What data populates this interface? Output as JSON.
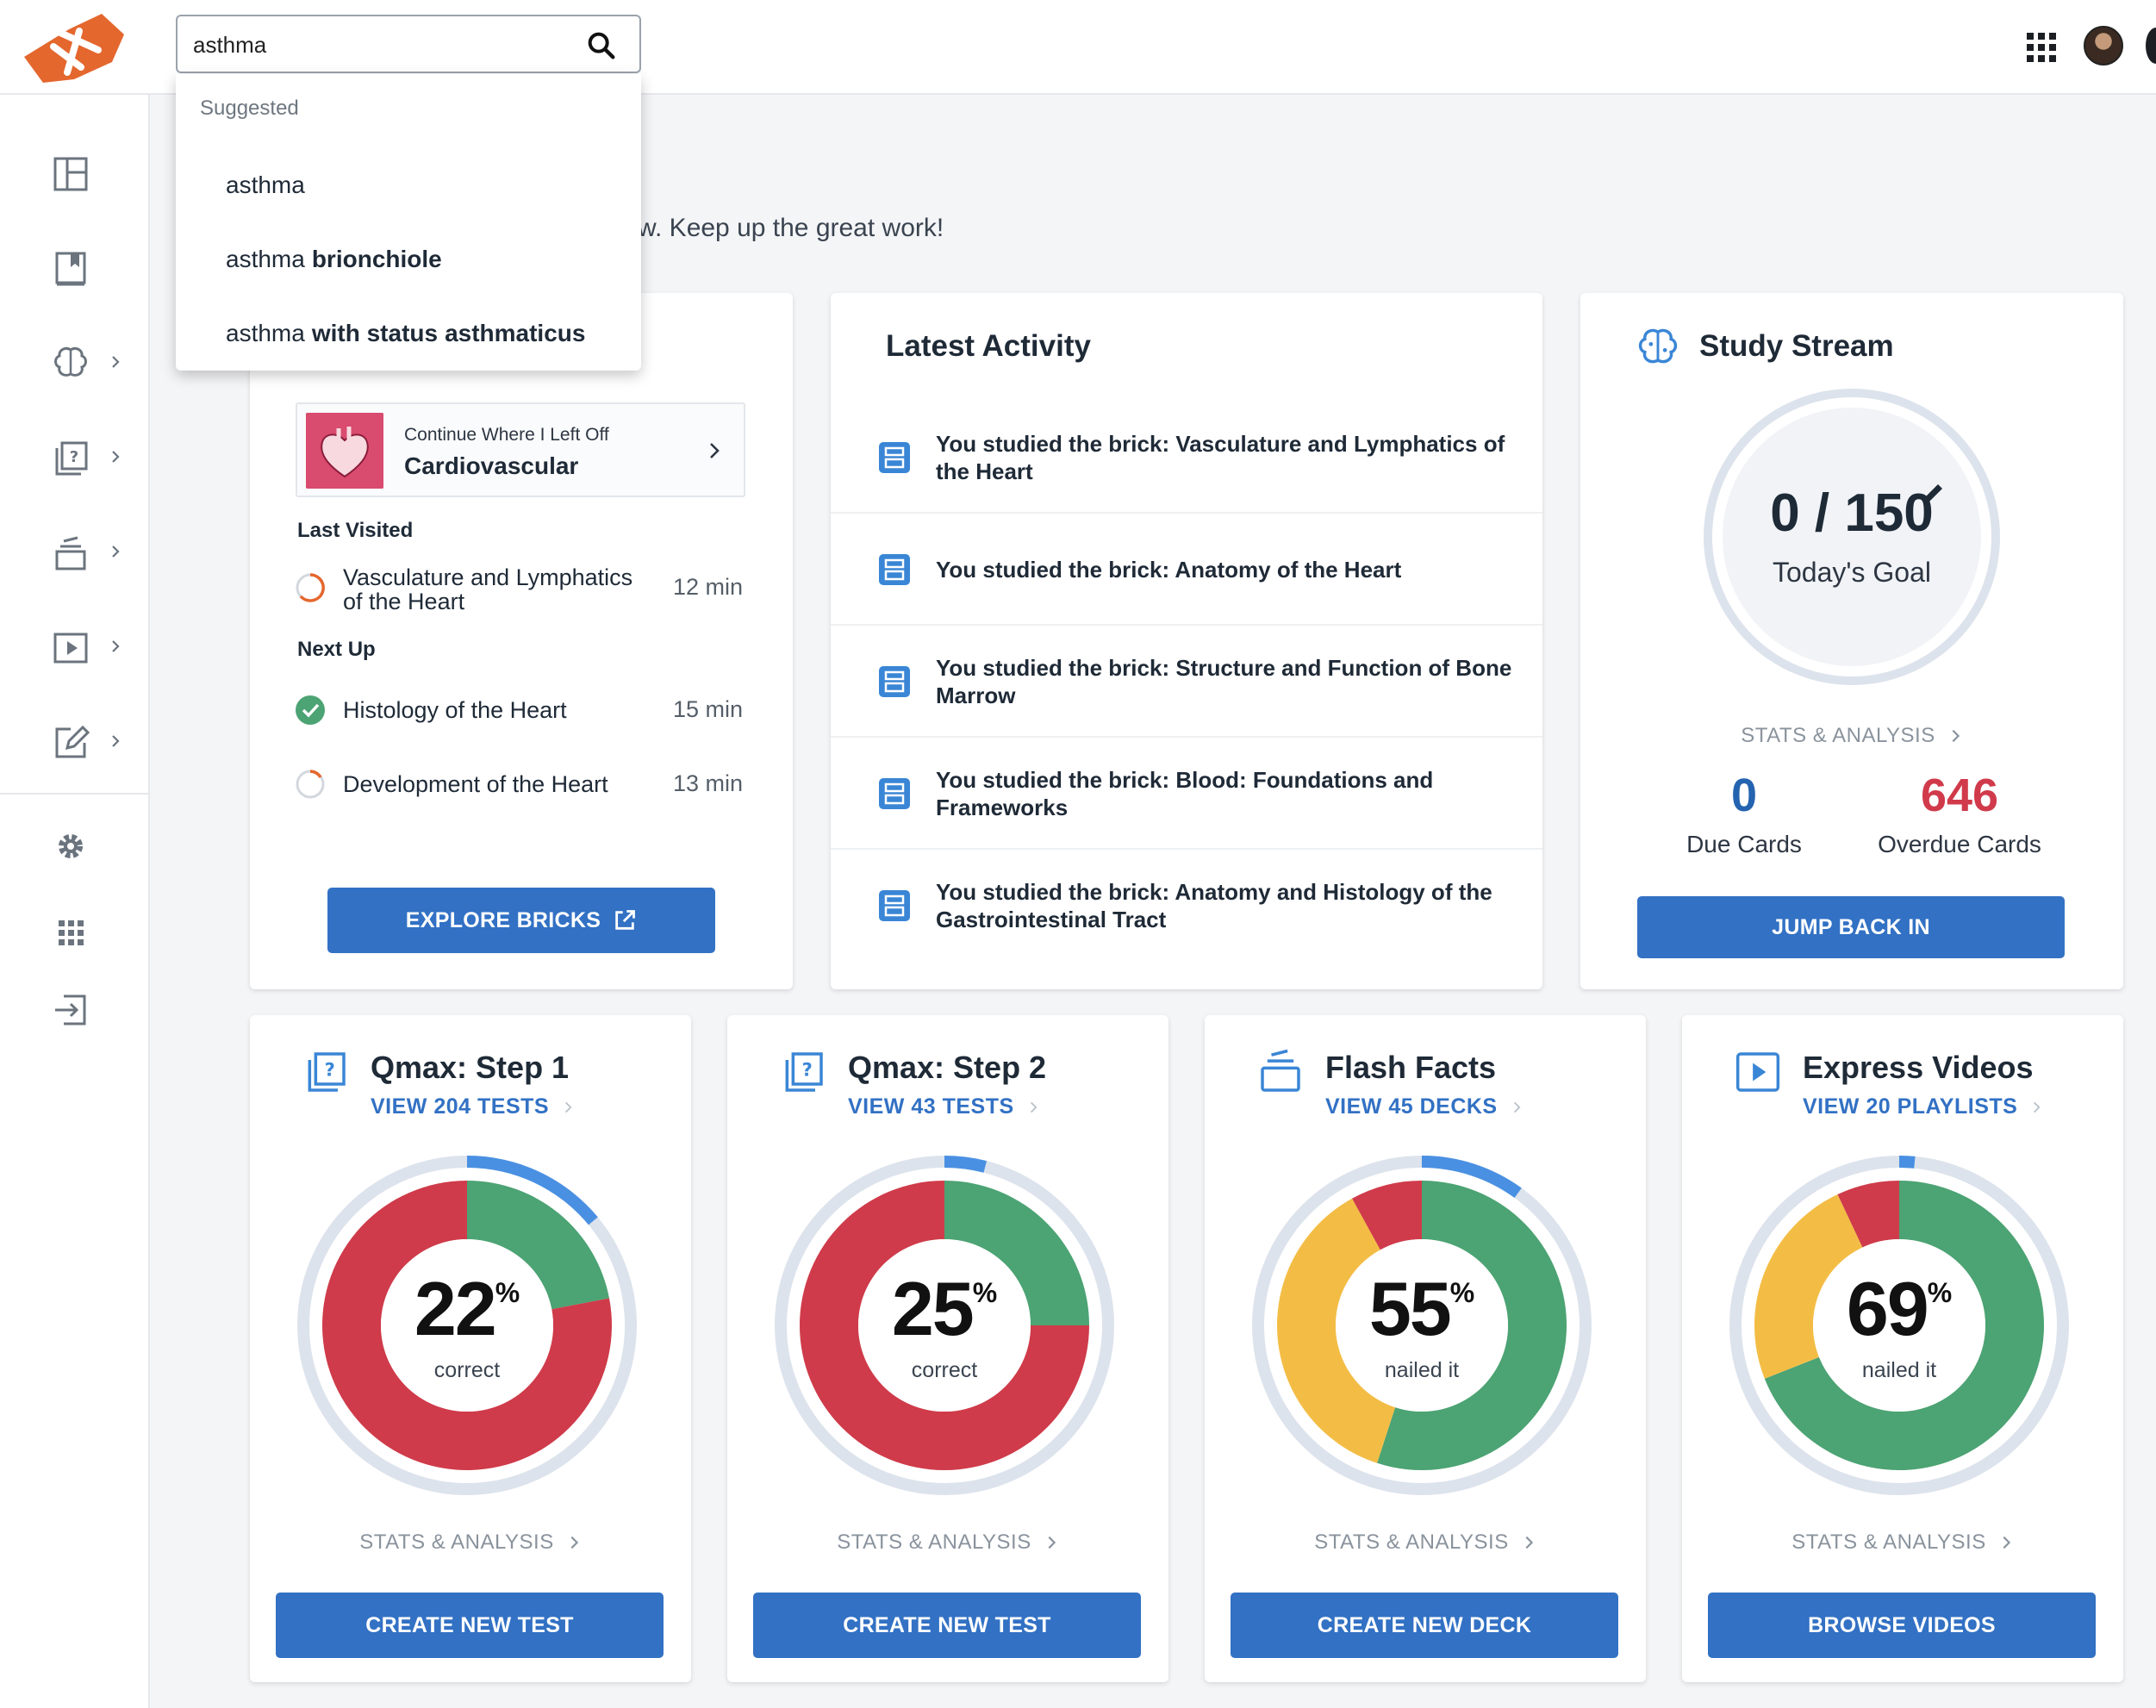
{
  "search": {
    "value": "asthma",
    "suggestions_header": "Suggested",
    "suggestions": [
      {
        "prefix": "asthma",
        "bold": "",
        "suffix": ""
      },
      {
        "prefix": "asthma",
        "bold": "brionchiole",
        "suffix": ""
      },
      {
        "prefix": "asthma",
        "bold": "with status",
        "suffix": "asthmaticus"
      }
    ]
  },
  "greeting": "w.  Keep up the great work!",
  "learning": {
    "continue_label": "Continue Where I Left Off",
    "continue_name": "Cardiovascular",
    "last_visited_label": "Last Visited",
    "next_up_label": "Next Up",
    "last_visited": [
      {
        "name": "Vasculature and Lymphatics of the Heart",
        "duration": "12 min",
        "status": "in-progress"
      }
    ],
    "next_up": [
      {
        "name": "Histology of the Heart",
        "duration": "15 min",
        "status": "complete"
      },
      {
        "name": "Development of the Heart",
        "duration": "13 min",
        "status": "in-progress"
      }
    ],
    "button": "EXPLORE BRICKS"
  },
  "activity": {
    "title": "Latest Activity",
    "items": [
      "You studied the brick: Vasculature and Lymphatics of the Heart",
      "You studied the brick: Anatomy of the Heart",
      "You studied the brick: Structure and Function of Bone Marrow",
      "You studied the brick: Blood: Foundations and Frameworks",
      "You studied the brick: Anatomy and Histology of the Gastrointestinal Tract"
    ]
  },
  "study_stream": {
    "title": "Study Stream",
    "goal_value": "0 / 150",
    "goal_label": "Today's Goal",
    "stats_link": "STATS & ANALYSIS",
    "due_value": "0",
    "due_label": "Due Cards",
    "overdue_value": "646",
    "overdue_label": "Overdue Cards",
    "button": "JUMP BACK IN",
    "due_color": "#2463b0",
    "overdue_color": "#d03a4a"
  },
  "modules": [
    {
      "title": "Qmax: Step 1",
      "link": "VIEW 204 TESTS",
      "percent": "22",
      "percent_sign": "%",
      "sub": "correct",
      "stats": "STATS & ANALYSIS",
      "button": "CREATE NEW TEST",
      "icon": "question-book-icon",
      "progress": 0.14,
      "segments": [
        {
          "color": "#4ca373",
          "value": 22
        },
        {
          "color": "#cf3b4a",
          "value": 78
        }
      ]
    },
    {
      "title": "Qmax: Step 2",
      "link": "VIEW 43 TESTS",
      "percent": "25",
      "percent_sign": "%",
      "sub": "correct",
      "stats": "STATS & ANALYSIS",
      "button": "CREATE NEW TEST",
      "icon": "question-book-icon",
      "progress": 0.04,
      "segments": [
        {
          "color": "#4ca373",
          "value": 25
        },
        {
          "color": "#cf3b4a",
          "value": 75
        }
      ]
    },
    {
      "title": "Flash Facts",
      "link": "VIEW 45 DECKS",
      "percent": "55",
      "percent_sign": "%",
      "sub": "nailed it",
      "stats": "STATS & ANALYSIS",
      "button": "CREATE NEW DECK",
      "icon": "card-stack-icon",
      "progress": 0.1,
      "segments": [
        {
          "color": "#4ca373",
          "value": 55
        },
        {
          "color": "#f3bd45",
          "value": 37
        },
        {
          "color": "#cf3b4a",
          "value": 8
        }
      ]
    },
    {
      "title": "Express Videos",
      "link": "VIEW 20 PLAYLISTS",
      "percent": "69",
      "percent_sign": "%",
      "sub": "nailed it",
      "stats": "STATS & ANALYSIS",
      "button": "BROWSE VIDEOS",
      "icon": "play-video-icon",
      "progress": 0.015,
      "segments": [
        {
          "color": "#4ca373",
          "value": 69
        },
        {
          "color": "#f3bd45",
          "value": 24
        },
        {
          "color": "#cf3b4a",
          "value": 7
        }
      ]
    }
  ],
  "colors": {
    "accent": "#3271c4",
    "progress_ring": "#4a90e2",
    "track": "#dde3ec"
  }
}
